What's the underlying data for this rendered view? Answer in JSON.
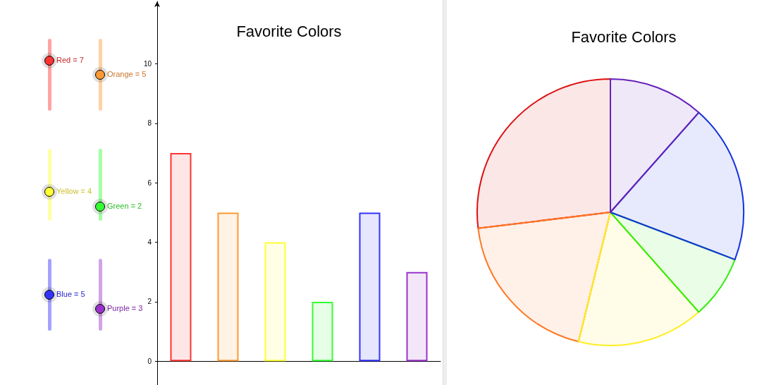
{
  "chart_data": [
    {
      "type": "bar",
      "title": "Favorite Colors",
      "categories": [
        null,
        null,
        null,
        null,
        null,
        null
      ],
      "values": [
        7,
        5,
        4,
        2,
        5,
        3
      ],
      "colors": [
        "#ff3333",
        "#ff9933",
        "#ffff33",
        "#33ff33",
        "#3333ff",
        "#9933cc"
      ],
      "ylim": [
        -0.8,
        12.1
      ],
      "yticks": [
        0,
        2,
        4,
        6,
        8,
        10
      ],
      "tick_labels": "y",
      "annotations": [
        "Red = 7",
        "Orange = 5",
        "Yellow = 4",
        "Green = 2",
        "Blue = 5",
        "Purple = 3"
      ]
    },
    {
      "type": "pie",
      "title": "Favorite Colors",
      "categories": [
        null,
        null,
        null,
        null,
        null,
        null
      ],
      "values": [
        26.92,
        19.23,
        15.38,
        7.69,
        19.23,
        11.54
      ],
      "colors": [
        "#dd1111",
        "#ff7722",
        "#ffee22",
        "#33ee11",
        "#1133dd",
        "#6622bb"
      ]
    }
  ]
}
